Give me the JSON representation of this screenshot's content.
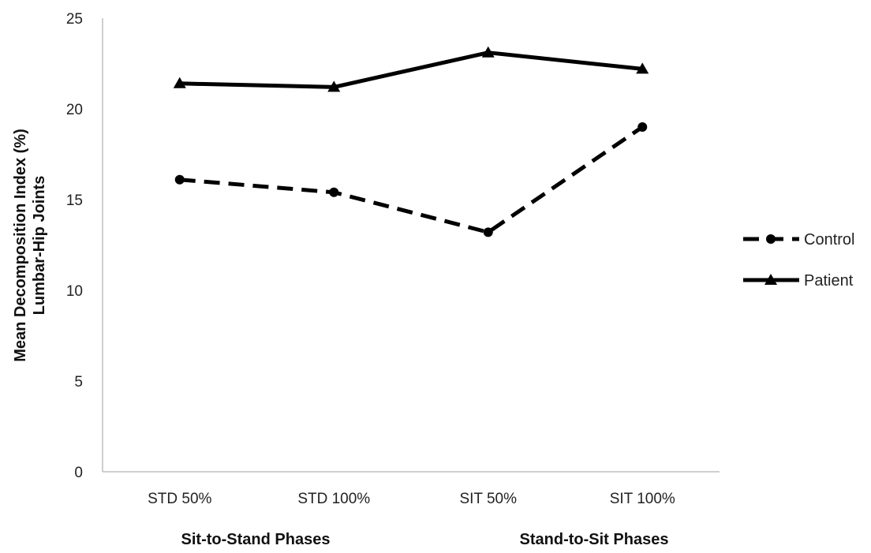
{
  "chart_data": {
    "type": "line",
    "categories": [
      "STD 50%",
      "STD 100%",
      "SIT 50%",
      "SIT 100%"
    ],
    "series": [
      {
        "name": "Control",
        "values": [
          16.1,
          15.4,
          13.2,
          19.0
        ],
        "line_style": "dashed",
        "marker": "circle",
        "color": "#000000"
      },
      {
        "name": "Patient",
        "values": [
          21.4,
          21.2,
          23.1,
          22.2
        ],
        "line_style": "solid",
        "marker": "triangle",
        "color": "#000000"
      }
    ],
    "ylabel": "Mean Decomposition Index (%) Lumbar-Hip Joints",
    "ylabel_lines": [
      "Mean Decomposition Index (%)",
      "Lumbar-Hip Joints"
    ],
    "xlabel_groups": [
      "Sit-to-Stand Phases",
      "Stand-to-Sit Phases"
    ],
    "ylim": [
      0,
      25
    ],
    "yticks": [
      0,
      5,
      10,
      15,
      20,
      25
    ],
    "grid": false,
    "legend_position": "right"
  }
}
